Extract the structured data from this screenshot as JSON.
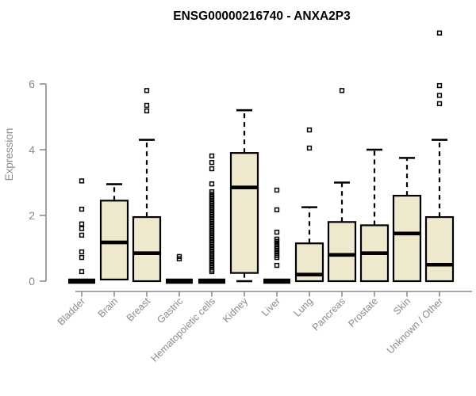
{
  "title": "ENSG00000216740 - ANXA2P3",
  "colors": {
    "box_fill": "#eee8cd",
    "box_stroke": "#000000",
    "median": "#000000",
    "outlier": "#000000",
    "axis": "#8c8c8c",
    "tick_label": "#8a8a8a",
    "title": "#000000"
  },
  "chart_data": {
    "type": "boxplot",
    "title": "ENSG00000216740 - ANXA2P3",
    "xlabel": "",
    "ylabel": "Expression",
    "ylim": [
      0,
      6
    ],
    "yticks": [
      0,
      2,
      4,
      6
    ],
    "grid": false,
    "legend": "none",
    "categories": [
      "Bladder",
      "Brain",
      "Breast",
      "Gastric",
      "Hematopoietic cells",
      "Kidney",
      "Liver",
      "Lung",
      "Pancreas",
      "Prostate",
      "Skin",
      "Unknown / Other"
    ],
    "series": [
      {
        "name": "Bladder",
        "whislo": 0,
        "q1": 0,
        "med": 0,
        "q3": 0,
        "whishi": 0,
        "outliers": [
          3.05,
          2.19,
          1.74,
          1.6,
          1.4,
          0.89,
          0.72,
          0.29
        ]
      },
      {
        "name": "Brain",
        "whislo": 0.05,
        "q1": 0.05,
        "med": 1.18,
        "q3": 2.45,
        "whishi": 2.95,
        "outliers": []
      },
      {
        "name": "Breast",
        "whislo": 0,
        "q1": 0,
        "med": 0.85,
        "q3": 1.95,
        "whishi": 4.3,
        "outliers": [
          5.8,
          5.35,
          5.18
        ]
      },
      {
        "name": "Gastric",
        "whislo": 0,
        "q1": 0,
        "med": 0,
        "q3": 0,
        "whishi": 0,
        "outliers": [
          0.75,
          0.68
        ]
      },
      {
        "name": "Hematopoietic cells",
        "whislo": 0,
        "q1": 0,
        "med": 0,
        "q3": 0,
        "whishi": 0,
        "outliers": [
          3.81,
          3.61,
          3.42,
          2.96,
          2.72,
          2.65,
          2.58,
          2.51,
          2.44,
          2.37,
          2.3,
          2.23,
          2.16,
          2.09,
          2.02,
          1.95,
          1.88,
          1.81,
          1.74,
          1.67,
          1.6,
          1.53,
          1.46,
          1.39,
          1.32,
          1.25,
          1.18,
          1.11,
          1.04,
          0.97,
          0.9,
          0.83,
          0.76,
          0.69,
          0.62,
          0.55,
          0.48,
          0.41,
          0.34,
          0.29
        ]
      },
      {
        "name": "Kidney",
        "whislo": 0,
        "q1": 0.25,
        "med": 2.85,
        "q3": 3.9,
        "whishi": 5.2,
        "outliers": []
      },
      {
        "name": "Liver",
        "whislo": 0,
        "q1": 0,
        "med": 0,
        "q3": 0,
        "whishi": 0,
        "outliers": [
          2.77,
          2.17,
          1.49,
          1.28,
          1.21,
          1.13,
          1.06,
          0.99,
          0.92,
          0.85,
          0.78,
          0.72,
          0.48
        ]
      },
      {
        "name": "Lung",
        "whislo": 0,
        "q1": 0,
        "med": 0.2,
        "q3": 1.15,
        "whishi": 2.25,
        "outliers": [
          4.6,
          4.05
        ]
      },
      {
        "name": "Pancreas",
        "whislo": 0,
        "q1": 0,
        "med": 0.8,
        "q3": 1.8,
        "whishi": 3.0,
        "outliers": [
          5.8
        ]
      },
      {
        "name": "Prostate",
        "whislo": 0,
        "q1": 0,
        "med": 0.85,
        "q3": 1.7,
        "whishi": 4.0,
        "outliers": []
      },
      {
        "name": "Skin",
        "whislo": 0,
        "q1": 0,
        "med": 1.45,
        "q3": 2.6,
        "whishi": 3.75,
        "outliers": []
      },
      {
        "name": "Unknown / Other",
        "whislo": 0,
        "q1": 0,
        "med": 0.5,
        "q3": 1.95,
        "whishi": 4.3,
        "outliers": [
          7.55,
          5.95,
          5.65,
          5.4
        ]
      }
    ]
  }
}
